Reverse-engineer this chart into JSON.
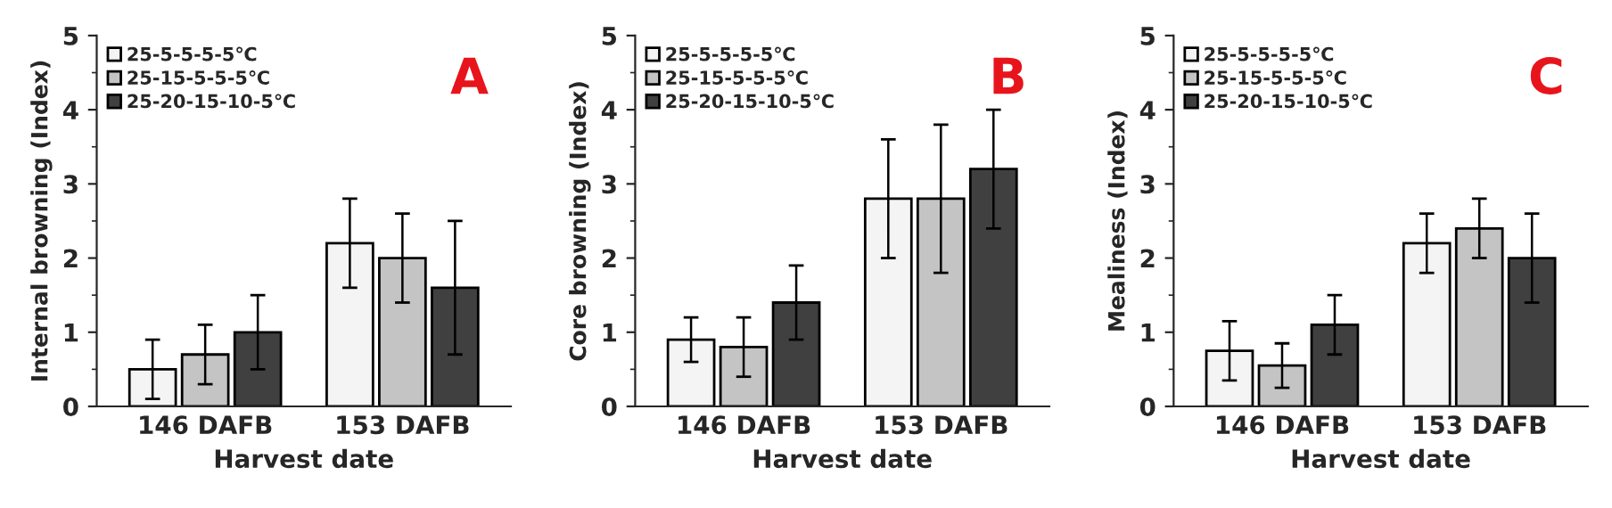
{
  "chart_data": [
    {
      "type": "bar",
      "xlabel": "Harvest date",
      "ylabel": "Internal browning (Index)",
      "categories": [
        "146 DAFB",
        "153 DAFB"
      ],
      "ylim": [
        0,
        5
      ],
      "yticks": [
        0,
        1,
        2,
        3,
        4,
        5
      ],
      "legend": "top left",
      "annotations": [
        "A"
      ],
      "series": [
        {
          "name": "25-5-5-5-5℃",
          "color": "#f4f4f4",
          "values": [
            0.5,
            2.2
          ],
          "errors": [
            0.4,
            0.6
          ]
        },
        {
          "name": "25-15-5-5-5℃",
          "color": "#c4c4c4",
          "values": [
            0.7,
            2.0
          ],
          "errors": [
            0.4,
            0.6
          ]
        },
        {
          "name": "25-20-15-10-5℃",
          "color": "#404040",
          "values": [
            1.0,
            1.6
          ],
          "errors": [
            0.5,
            0.9
          ]
        }
      ]
    },
    {
      "type": "bar",
      "xlabel": "Harvest date",
      "ylabel": "Core browning (Index)",
      "categories": [
        "146 DAFB",
        "153 DAFB"
      ],
      "ylim": [
        0,
        5
      ],
      "yticks": [
        0,
        1,
        2,
        3,
        4,
        5
      ],
      "legend": "top left",
      "annotations": [
        "B"
      ],
      "series": [
        {
          "name": "25-5-5-5-5℃",
          "color": "#f4f4f4",
          "values": [
            0.9,
            2.8
          ],
          "errors": [
            0.3,
            0.8
          ]
        },
        {
          "name": "25-15-5-5-5℃",
          "color": "#c4c4c4",
          "values": [
            0.8,
            2.8
          ],
          "errors": [
            0.4,
            1.0
          ]
        },
        {
          "name": "25-20-15-10-5℃",
          "color": "#404040",
          "values": [
            1.4,
            3.2
          ],
          "errors": [
            0.5,
            0.8
          ]
        }
      ]
    },
    {
      "type": "bar",
      "xlabel": "Harvest date",
      "ylabel": "Mealiness (Index)",
      "categories": [
        "146 DAFB",
        "153 DAFB"
      ],
      "ylim": [
        0,
        5
      ],
      "yticks": [
        0,
        1,
        2,
        3,
        4,
        5
      ],
      "legend": "top left",
      "annotations": [
        "C"
      ],
      "series": [
        {
          "name": "25-5-5-5-5℃",
          "color": "#f4f4f4",
          "values": [
            0.75,
            2.2
          ],
          "errors": [
            0.4,
            0.4
          ]
        },
        {
          "name": "25-15-5-5-5℃",
          "color": "#c4c4c4",
          "values": [
            0.55,
            2.4
          ],
          "errors": [
            0.3,
            0.4
          ]
        },
        {
          "name": "25-20-15-10-5℃",
          "color": "#404040",
          "values": [
            1.1,
            2.0
          ],
          "errors": [
            0.4,
            0.6
          ]
        }
      ]
    }
  ]
}
